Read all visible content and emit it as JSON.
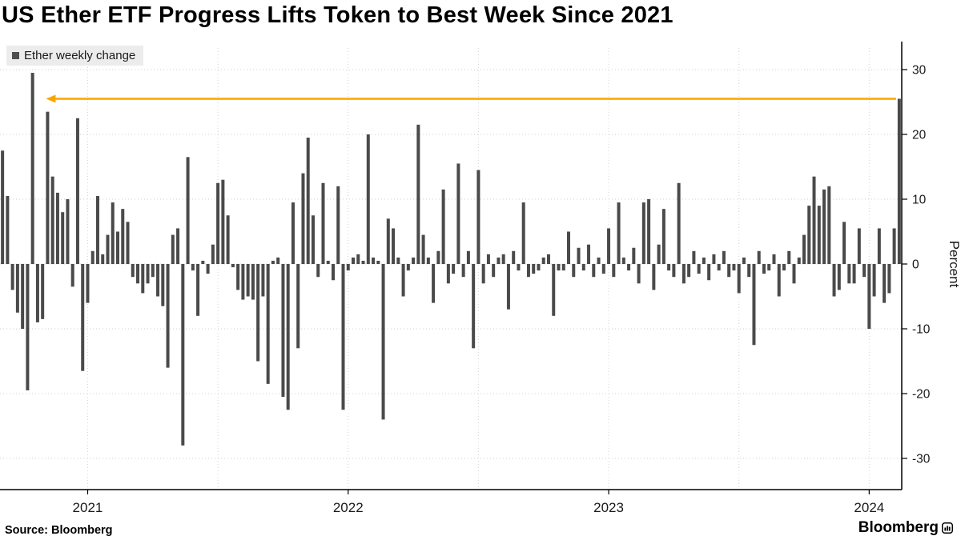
{
  "title": "US Ether ETF Progress Lifts Token to Best Week Since 2021",
  "legend": {
    "label": "Ether weekly change",
    "swatch_color": "#4d4d4d"
  },
  "source": "Source: Bloomberg",
  "branding": "Bloomberg",
  "chart_data": {
    "type": "bar",
    "series_name": "Ether weekly change",
    "title": "US Ether ETF Progress Lifts Token to Best Week Since 2021",
    "xlabel": "",
    "ylabel": "Percent",
    "ylim": [
      -34,
      34
    ],
    "y_ticks": [
      30,
      20,
      10,
      0,
      -10,
      -20,
      -30
    ],
    "x_tick_labels": [
      "2021",
      "2022",
      "2023",
      "2024"
    ],
    "x_tick_indices": [
      17,
      69,
      121,
      173
    ],
    "x_grid_indices": [
      17,
      43,
      69,
      95,
      121,
      147,
      173
    ],
    "grid": "dotted",
    "legend_position": "top-left",
    "bar_color": "#4a4a4a",
    "annotation": {
      "type": "arrow",
      "color": "#f7a600",
      "y_value": 25.5,
      "from_index": 179,
      "to_index": 9,
      "direction": "left"
    },
    "values": [
      17.5,
      10.5,
      -4,
      -7.5,
      -10,
      -19.5,
      29.5,
      -9,
      -8.5,
      23.5,
      13.5,
      11,
      8,
      10,
      -3.5,
      22.5,
      -16.5,
      -6,
      2,
      10.5,
      1.5,
      4.5,
      9.5,
      5,
      8.5,
      6.5,
      -2,
      -3,
      -4.5,
      -3,
      -2,
      -5,
      -6.5,
      -16,
      4.5,
      5.5,
      -28,
      16.5,
      -1,
      -8,
      0.5,
      -1.5,
      3,
      12.5,
      13,
      7.5,
      -0.5,
      -4,
      -5.5,
      -5,
      -5.5,
      -15,
      -5,
      -18.5,
      0.5,
      1,
      -20.5,
      -22.5,
      9.5,
      -13,
      14,
      19.5,
      7.5,
      -2,
      12.5,
      0.5,
      -2.5,
      12,
      -22.5,
      -1,
      1,
      1.5,
      0.5,
      20,
      1,
      0.5,
      -24,
      7,
      5.5,
      1,
      -5,
      -1,
      1,
      21.5,
      4.5,
      1,
      -6,
      2,
      11.5,
      -3,
      -1.5,
      15.5,
      -2,
      2,
      -13,
      14.5,
      -3,
      1.5,
      -2,
      1,
      1.5,
      -7,
      2,
      -1,
      9.5,
      -2,
      -1.5,
      -1,
      1,
      1.5,
      -8,
      -1,
      -1,
      5,
      -2,
      2.5,
      -1,
      3,
      -2,
      1,
      -1.5,
      5.5,
      -2,
      9.5,
      1,
      -1,
      2.5,
      -3,
      9.5,
      10,
      -4,
      3,
      8.5,
      -1,
      -2,
      12.5,
      -3,
      -2,
      2,
      -1.5,
      1,
      -2.5,
      1.5,
      -1,
      2,
      -2,
      -1,
      -4.5,
      1,
      -2,
      -12.5,
      2,
      -1.5,
      -1,
      1.5,
      -5,
      -1,
      2,
      -3,
      1,
      4.5,
      9,
      13.5,
      9,
      11.5,
      12,
      -5,
      -4,
      6.5,
      -3,
      -3,
      5.5,
      -2,
      -10,
      -5,
      5.5,
      -6,
      -4.5,
      5.5,
      25.5
    ]
  }
}
